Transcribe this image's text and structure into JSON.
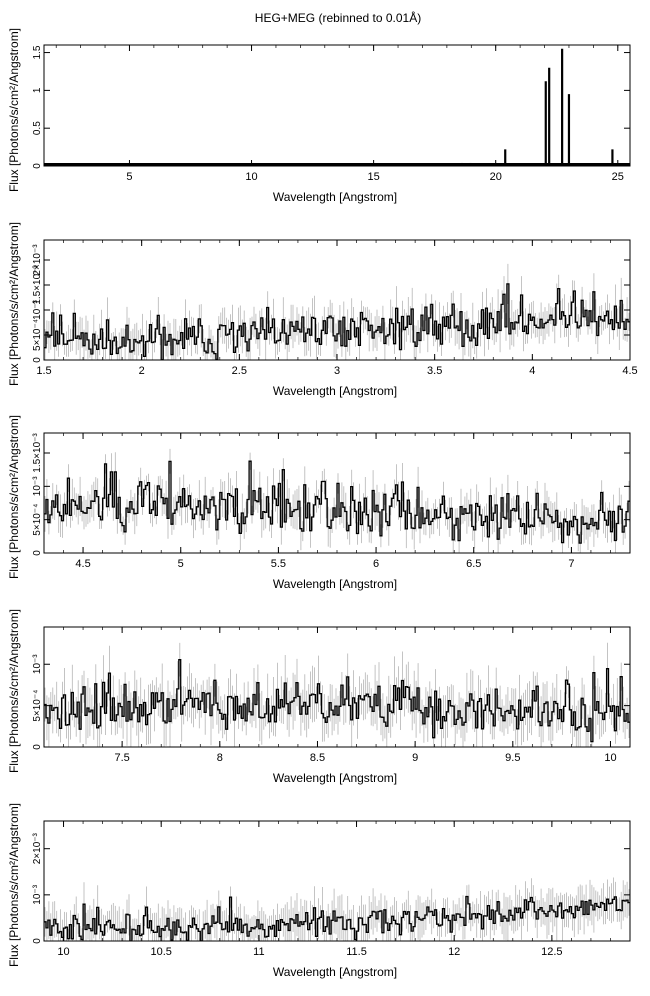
{
  "figure_title": "HEG+MEG (rebinned to 0.01Å)",
  "chart_data": [
    {
      "type": "line",
      "xlabel": "Wavelength [Angstrom]",
      "ylabel": "Flux [Photons/s/cm²/Angstrom]",
      "xlim": [
        1.5,
        25.5
      ],
      "ylim": [
        0,
        1.6
      ],
      "xticks": [
        5,
        10,
        15,
        20,
        25
      ],
      "xtick_labels": [
        "5",
        "10",
        "15",
        "20",
        "25"
      ],
      "yticks": [
        0,
        0.5,
        1,
        1.5
      ],
      "ytick_labels": [
        "0",
        "0.5",
        "1",
        "1.5"
      ],
      "baseline": 0.02,
      "lines": [
        {
          "x": 17.77,
          "y": 0.03
        },
        {
          "x": 18.62,
          "y": 0.04
        },
        {
          "x": 18.97,
          "y": 0.04
        },
        {
          "x": 20.39,
          "y": 0.22
        },
        {
          "x": 22.05,
          "y": 1.12
        },
        {
          "x": 22.19,
          "y": 1.3
        },
        {
          "x": 22.72,
          "y": 1.55
        },
        {
          "x": 23.0,
          "y": 0.95
        },
        {
          "x": 24.78,
          "y": 0.22
        }
      ]
    },
    {
      "type": "line",
      "xlabel": "Wavelength [Angstrom]",
      "ylabel": "Flux [Photons/s/cm²/Angstrom]",
      "xlim": [
        1.5,
        4.5
      ],
      "ylim": [
        0,
        0.0024
      ],
      "xticks": [
        1.5,
        2,
        2.5,
        3,
        3.5,
        4,
        4.5
      ],
      "xtick_labels": [
        "1.5",
        "2",
        "2.5",
        "3",
        "3.5",
        "4",
        "4.5"
      ],
      "yticks": [
        0,
        0.0005,
        0.001,
        0.0015,
        0.002
      ],
      "ytick_labels": [
        "0",
        "5×10⁻⁴",
        "10⁻³",
        "1.5×10⁻³",
        "2×10⁻³"
      ],
      "trend": [
        [
          1.5,
          0.0005
        ],
        [
          2.0,
          0.00035
        ],
        [
          3.0,
          0.0006
        ],
        [
          4.5,
          0.00085
        ]
      ],
      "noise": 0.00025,
      "err": 0.00035,
      "bin": 0.01,
      "seed": 11
    },
    {
      "type": "line",
      "xlabel": "Wavelength [Angstrom]",
      "ylabel": "Flux [Photons/s/cm²/Angstrom]",
      "xlim": [
        4.3,
        7.3
      ],
      "ylim": [
        0,
        0.0018
      ],
      "xticks": [
        4.5,
        5,
        5.5,
        6,
        6.5,
        7
      ],
      "xtick_labels": [
        "4.5",
        "5",
        "5.5",
        "6",
        "6.5",
        "7"
      ],
      "yticks": [
        0,
        0.0005,
        0.001,
        0.0015
      ],
      "ytick_labels": [
        "0",
        "5×10⁻⁴",
        "10⁻³",
        "1.5×10⁻³"
      ],
      "trend": [
        [
          4.3,
          0.0007
        ],
        [
          5.0,
          0.00075
        ],
        [
          6.0,
          0.00055
        ],
        [
          7.3,
          0.0005
        ]
      ],
      "noise": 0.00022,
      "err": 0.00025,
      "bin": 0.01,
      "seed": 23
    },
    {
      "type": "line",
      "xlabel": "Wavelength [Angstrom]",
      "ylabel": "Flux [Photons/s/cm²/Angstrom]",
      "xlim": [
        7.1,
        10.1
      ],
      "ylim": [
        0,
        0.00145
      ],
      "xticks": [
        7.5,
        8,
        8.5,
        9,
        9.5,
        10
      ],
      "xtick_labels": [
        "7.5",
        "8",
        "8.5",
        "9",
        "9.5",
        "10"
      ],
      "yticks": [
        0,
        0.0005,
        0.001
      ],
      "ytick_labels": [
        "0",
        "5×10⁻⁴",
        "10⁻³"
      ],
      "trend": [
        [
          7.1,
          0.00045
        ],
        [
          8.5,
          0.0005
        ],
        [
          10.1,
          0.00045
        ]
      ],
      "noise": 0.00018,
      "err": 0.00028,
      "bin": 0.01,
      "seed": 37
    },
    {
      "type": "line",
      "xlabel": "Wavelength [Angstrom]",
      "ylabel": "Flux [Photons/s/cm²/Angstrom]",
      "xlim": [
        9.9,
        12.9
      ],
      "ylim": [
        0,
        0.0026
      ],
      "xticks": [
        10,
        10.5,
        11,
        11.5,
        12,
        12.5
      ],
      "xtick_labels": [
        "10",
        "10.5",
        "11",
        "11.5",
        "12",
        "12.5"
      ],
      "yticks": [
        0,
        0.001,
        0.002
      ],
      "ytick_labels": [
        "0",
        "10⁻³",
        "2×10⁻³"
      ],
      "trend": [
        [
          9.9,
          0.0003
        ],
        [
          11.0,
          0.0003
        ],
        [
          12.0,
          0.0005
        ],
        [
          12.9,
          0.0008
        ]
      ],
      "noise": 0.00018,
      "err": 0.0004,
      "bin": 0.01,
      "seed": 51
    }
  ]
}
